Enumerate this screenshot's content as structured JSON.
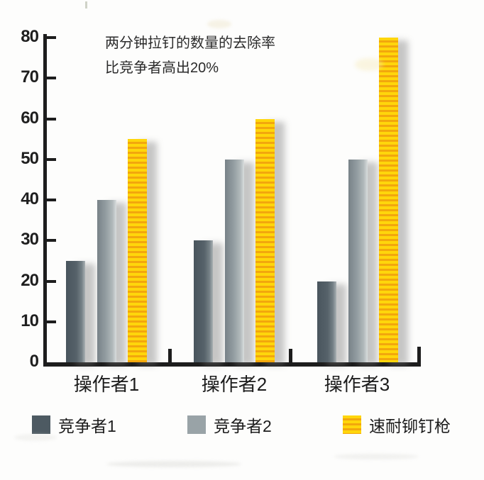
{
  "chart_data": {
    "type": "bar",
    "title": "",
    "categories": [
      "操作者1",
      "操作者2",
      "操作者3"
    ],
    "series": [
      {
        "name": "竞争者1",
        "color": "#56626a",
        "values": [
          25,
          30,
          20
        ]
      },
      {
        "name": "竞争者2",
        "color": "#99a3a7",
        "values": [
          40,
          50,
          50
        ]
      },
      {
        "name": "速耐铆钉枪",
        "color": "#ffd60b",
        "stripe_color": "#f2a70d",
        "values": [
          55,
          60,
          80
        ]
      }
    ],
    "xlabel": "",
    "ylabel": "",
    "ylim": [
      0,
      80
    ],
    "yticks": [
      0,
      10,
      20,
      30,
      40,
      50,
      60,
      70,
      80
    ],
    "grid": false,
    "legend_position": "bottom",
    "annotation": [
      "两分钟拉钉的数量的去除率",
      "比竞争者高出20%"
    ]
  },
  "colors": {
    "axis": "#1d1d1d",
    "background": "#fdfdfc",
    "series1": "#56626a",
    "series2": "#99a3a7",
    "series3": "#ffd60b",
    "series3_stripe": "#f2a70d"
  }
}
